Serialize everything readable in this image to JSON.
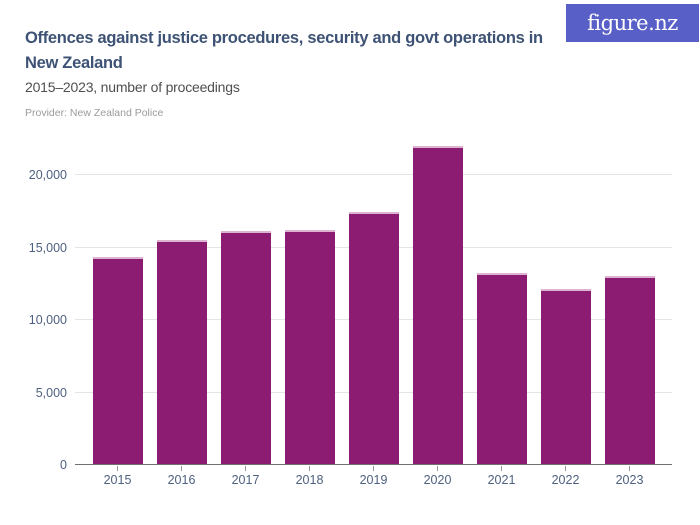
{
  "header": {
    "title": "Offences against justice procedures, security and govt operations in New Zealand",
    "subtitle": "2015–2023, number of proceedings",
    "provider": "Provider: New Zealand Police",
    "logo_text": "figure.nz"
  },
  "colors": {
    "bar": "#8c1c71",
    "bar_top_edge": "#ddb3d2",
    "title_text": "#3d5274",
    "axis_label_text": "#4e6080",
    "gridline": "#e4e4e4",
    "baseline": "#707070",
    "logo_background": "#585fc7"
  },
  "chart_data": {
    "type": "bar",
    "title": "Offences against justice procedures, security and govt operations in New Zealand",
    "subtitle": "2015–2023, number of proceedings",
    "categories": [
      "2015",
      "2016",
      "2017",
      "2018",
      "2019",
      "2020",
      "2021",
      "2022",
      "2023"
    ],
    "values": [
      14250,
      15450,
      16100,
      16150,
      17400,
      21900,
      13150,
      12100,
      12950
    ],
    "xlabel": "",
    "ylabel": "number of proceedings",
    "ylim": [
      0,
      22400
    ],
    "yticks": [
      0,
      5000,
      10000,
      15000,
      20000
    ],
    "ytick_labels": [
      "0",
      "5,000",
      "10,000",
      "15,000",
      "20,000"
    ],
    "grid": "horizontal",
    "legend": "none",
    "bar_color": "#8c1c71"
  }
}
